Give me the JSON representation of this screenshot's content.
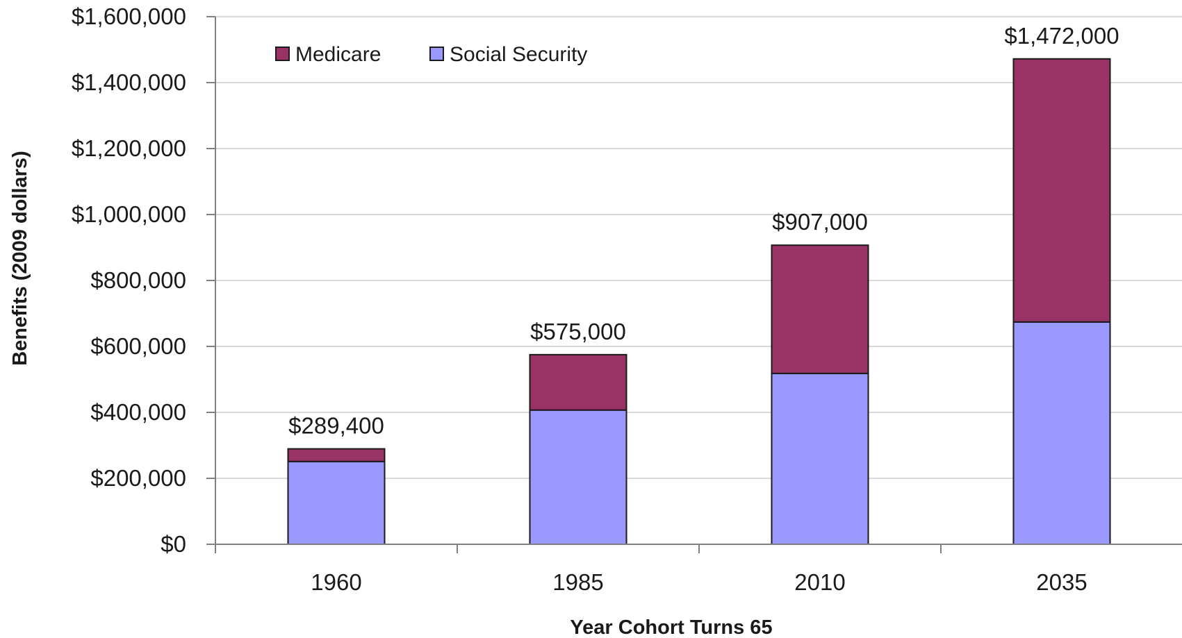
{
  "chart_data": {
    "type": "bar",
    "stacked": true,
    "categories": [
      "1960",
      "1985",
      "2010",
      "2035"
    ],
    "series": [
      {
        "name": "Social Security",
        "values": [
          251000,
          407000,
          518000,
          674000
        ],
        "color": "#9999ff"
      },
      {
        "name": "Medicare",
        "values": [
          38400,
          168000,
          389000,
          798000
        ],
        "color": "#993366"
      }
    ],
    "totals": [
      289400,
      575000,
      907000,
      1472000
    ],
    "total_labels": [
      "$289,400",
      "$575,000",
      "$907,000",
      "$1,472,000"
    ],
    "title": "",
    "xlabel": "Year Cohort Turns 65",
    "ylabel": "Benefits (2009 dollars)",
    "ylim": [
      0,
      1600000
    ],
    "yticks": [
      0,
      200000,
      400000,
      600000,
      800000,
      1000000,
      1200000,
      1400000,
      1600000
    ],
    "ytick_labels": [
      "$0",
      "$200,000",
      "$400,000",
      "$600,000",
      "$800,000",
      "$1,000,000",
      "$1,200,000",
      "$1,400,000",
      "$1,600,000"
    ],
    "legend": {
      "placement": "top-left",
      "entries": [
        "Medicare",
        "Social Security"
      ]
    },
    "grid": true,
    "colors": {
      "grid": "#d9d9d9",
      "axis": "#808080",
      "bar_outline": "#1a1a1a"
    }
  }
}
